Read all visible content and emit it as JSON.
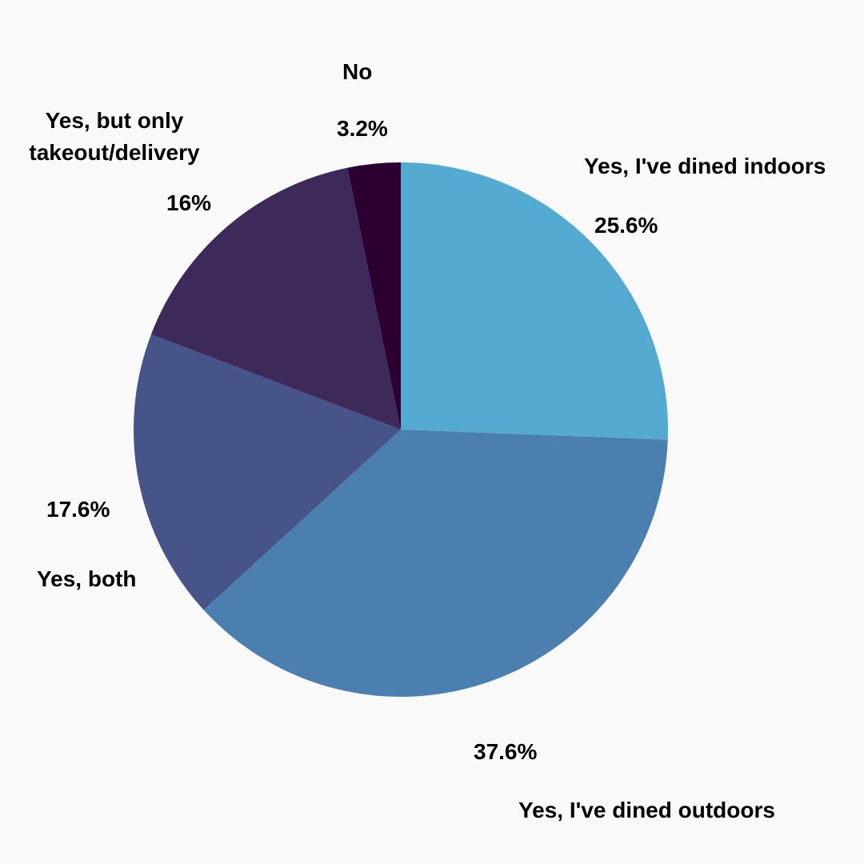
{
  "chart_data": {
    "type": "pie",
    "title": "",
    "slices": [
      {
        "label": "Yes, I've dined indoors",
        "value": 25.6,
        "value_label": "25.6%",
        "color": "#55aad2"
      },
      {
        "label": "Yes, I've dined outdoors",
        "value": 37.6,
        "value_label": "37.6%",
        "color": "#4a7faf"
      },
      {
        "label": "Yes, both",
        "value": 17.6,
        "value_label": "17.6%",
        "color": "#46548a"
      },
      {
        "label": "Yes, but only takeout/delivery",
        "value": 16,
        "value_label": "16%",
        "color": "#3e2a5a"
      },
      {
        "label": "No",
        "value": 3.2,
        "value_label": "3.2%",
        "color": "#2b0030"
      }
    ],
    "start_angle_deg": 0,
    "direction": "clockwise",
    "legend": "none"
  },
  "background_color": "#f9f9f9"
}
